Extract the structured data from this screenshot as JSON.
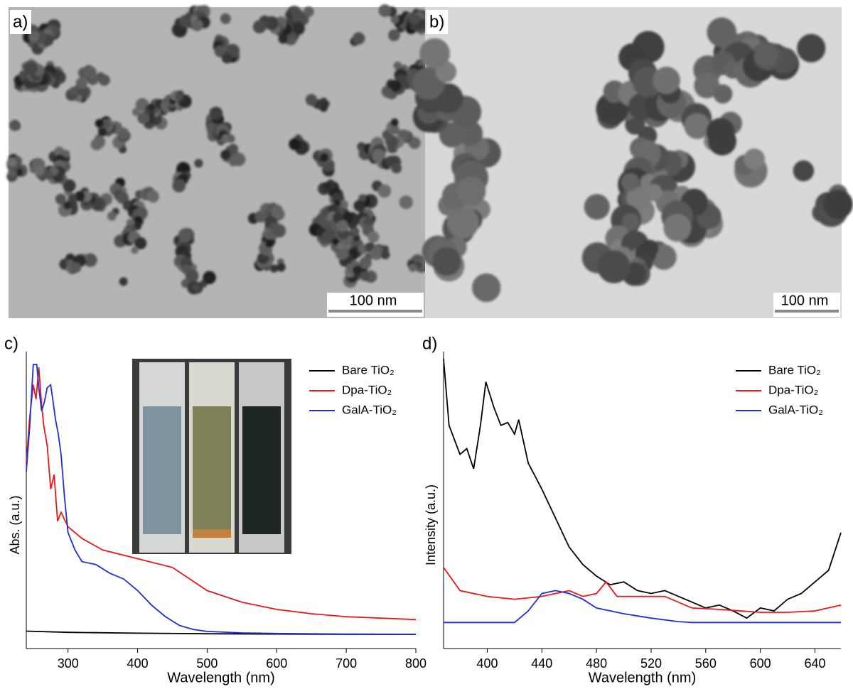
{
  "images": [
    {
      "label": "a)",
      "scale_bar": "100 nm"
    },
    {
      "label": "b)",
      "scale_bar": "100 nm"
    }
  ],
  "chart_data": [
    {
      "type": "line",
      "label": "c)",
      "xlabel": "Wavelength (nm)",
      "ylabel": "Abs. (a.u.)",
      "xlim": [
        240,
        800
      ],
      "xticks": [
        300,
        400,
        500,
        600,
        700,
        800
      ],
      "ylim": [
        0,
        100
      ],
      "legend": "upper right",
      "series": [
        {
          "name": "Bare TiO₂",
          "color": "#000000",
          "x": [
            240,
            300,
            400,
            500,
            600,
            700,
            800
          ],
          "values": [
            6,
            5.6,
            5.3,
            5.1,
            5,
            4.9,
            4.9
          ]
        },
        {
          "name": "Dpa-TiO₂",
          "color": "#e31a1c",
          "x": [
            240,
            245,
            250,
            254,
            258,
            262,
            265,
            270,
            275,
            280,
            285,
            290,
            300,
            320,
            350,
            400,
            450,
            500,
            550,
            600,
            650,
            700,
            750,
            800
          ],
          "values": [
            64,
            80,
            91,
            86,
            97,
            84,
            77,
            70,
            55,
            60,
            44,
            47,
            42,
            38,
            34,
            31,
            28,
            20,
            16,
            13.5,
            12,
            11,
            10.5,
            10
          ]
        },
        {
          "name": "GalA-TiO₂",
          "color": "#1f2fd0",
          "x": [
            240,
            245,
            250,
            255,
            258,
            262,
            266,
            270,
            275,
            278,
            282,
            286,
            290,
            295,
            300,
            310,
            320,
            340,
            360,
            380,
            400,
            420,
            440,
            460,
            480,
            500,
            550,
            600,
            700,
            800
          ],
          "values": [
            61,
            77,
            98,
            98,
            90,
            82,
            85,
            90,
            91,
            86,
            79,
            74,
            67,
            52,
            40,
            34,
            30,
            29,
            26,
            24,
            20,
            15,
            11,
            8,
            6.6,
            5.9,
            5.4,
            5.2,
            5,
            4.9
          ]
        }
      ]
    },
    {
      "type": "line",
      "label": "d)",
      "xlabel": "Wavelength (nm)",
      "ylabel": "Intensity (a.u.)",
      "xlim": [
        368,
        659
      ],
      "xticks": [
        400,
        440,
        480,
        520,
        560,
        600,
        640
      ],
      "ylim": [
        0,
        100
      ],
      "legend": "upper right",
      "series": [
        {
          "name": "Bare TiO₂",
          "color": "#000000",
          "x": [
            368,
            372,
            380,
            385,
            390,
            395,
            399,
            405,
            410,
            415,
            420,
            423,
            430,
            440,
            450,
            460,
            470,
            480,
            490,
            500,
            510,
            520,
            530,
            540,
            550,
            560,
            570,
            580,
            590,
            600,
            610,
            620,
            630,
            640,
            650,
            659
          ],
          "values": [
            100,
            77,
            67,
            69,
            62,
            77,
            92,
            83,
            77,
            78,
            74,
            79,
            64,
            55,
            45,
            35,
            29,
            25,
            22,
            23,
            20,
            19,
            20,
            18,
            16,
            14,
            15,
            13,
            10.5,
            14,
            13,
            17,
            19,
            23,
            27,
            40
          ]
        },
        {
          "name": "Dpa-TiO₂",
          "color": "#e31a1c",
          "x": [
            368,
            380,
            400,
            420,
            440,
            460,
            470,
            480,
            487,
            495,
            510,
            530,
            550,
            570,
            600,
            620,
            640,
            659
          ],
          "values": [
            28,
            20,
            18,
            17,
            18,
            20,
            18,
            19,
            23,
            18,
            18,
            18,
            14,
            13.5,
            12.5,
            12.5,
            13,
            15
          ]
        },
        {
          "name": "GalA-TiO₂",
          "color": "#1f2fd0",
          "x": [
            368,
            400,
            420,
            430,
            440,
            450,
            460,
            470,
            480,
            500,
            520,
            540,
            550,
            600,
            659
          ],
          "values": [
            9,
            9,
            9,
            13,
            19,
            20,
            19,
            17,
            14,
            12,
            10.5,
            9.3,
            9,
            9,
            9
          ]
        }
      ]
    }
  ]
}
